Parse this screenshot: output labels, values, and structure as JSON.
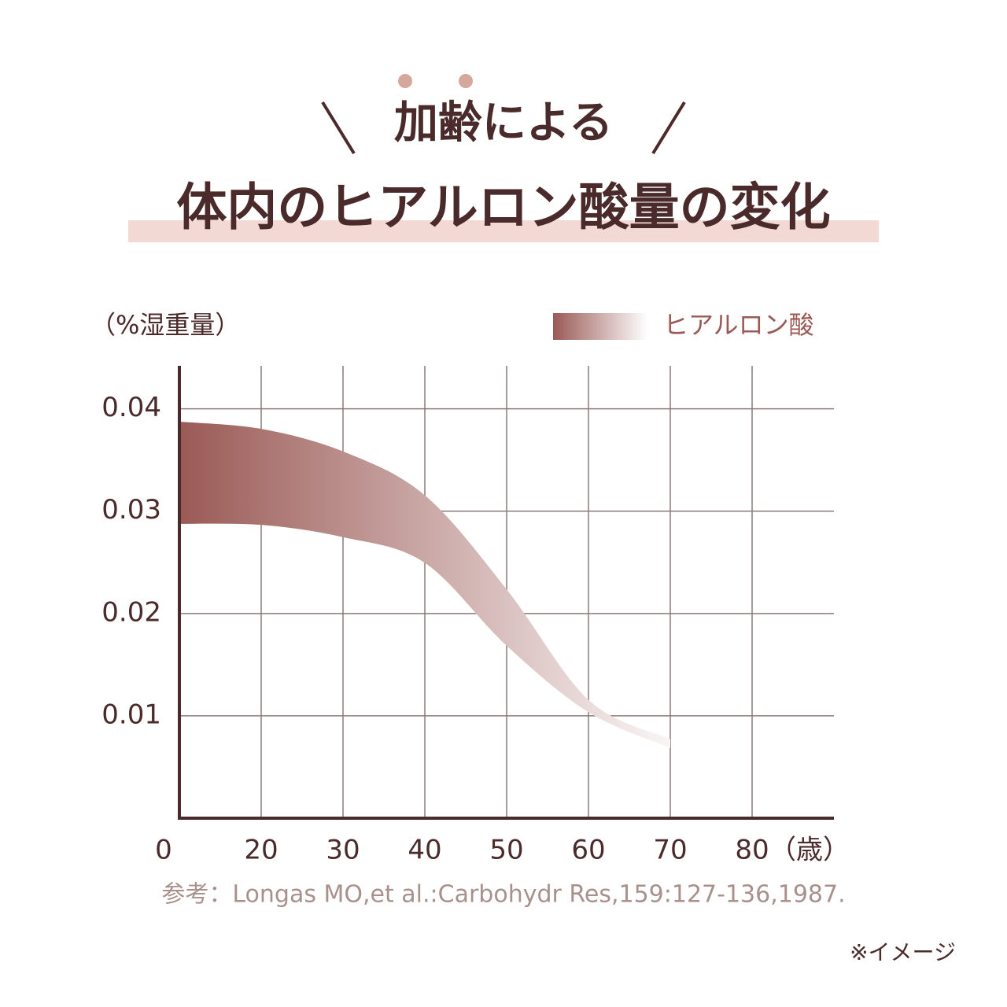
{
  "kicker": "加齢による",
  "chart_data": {
    "type": "area",
    "title": "体内のヒアルロン酸量の変化",
    "ylabel": "（%湿重量）",
    "xlabel": "（歳）",
    "categories": [
      "0",
      "20",
      "30",
      "40",
      "50",
      "60",
      "70",
      "80"
    ],
    "ylim": [
      0,
      0.0442
    ],
    "yticks": [
      0.01,
      0.02,
      0.03,
      0.04
    ],
    "grid": true,
    "legend": "top-right",
    "band": {
      "name": "ヒアルロン酸",
      "color": "#9a5a56",
      "fade_color": "#ffffff",
      "upper": [
        0.0387,
        0.038,
        0.0358,
        0.0315,
        0.0223,
        0.0115,
        0.0077,
        null
      ],
      "lower": [
        0.0288,
        0.0287,
        0.0275,
        0.025,
        0.0169,
        0.0104,
        0.0069,
        null
      ]
    },
    "source": "参考：Longas MO,et al.:Carbohydr Res,159:127-136,1987.",
    "note": "※イメージ"
  }
}
